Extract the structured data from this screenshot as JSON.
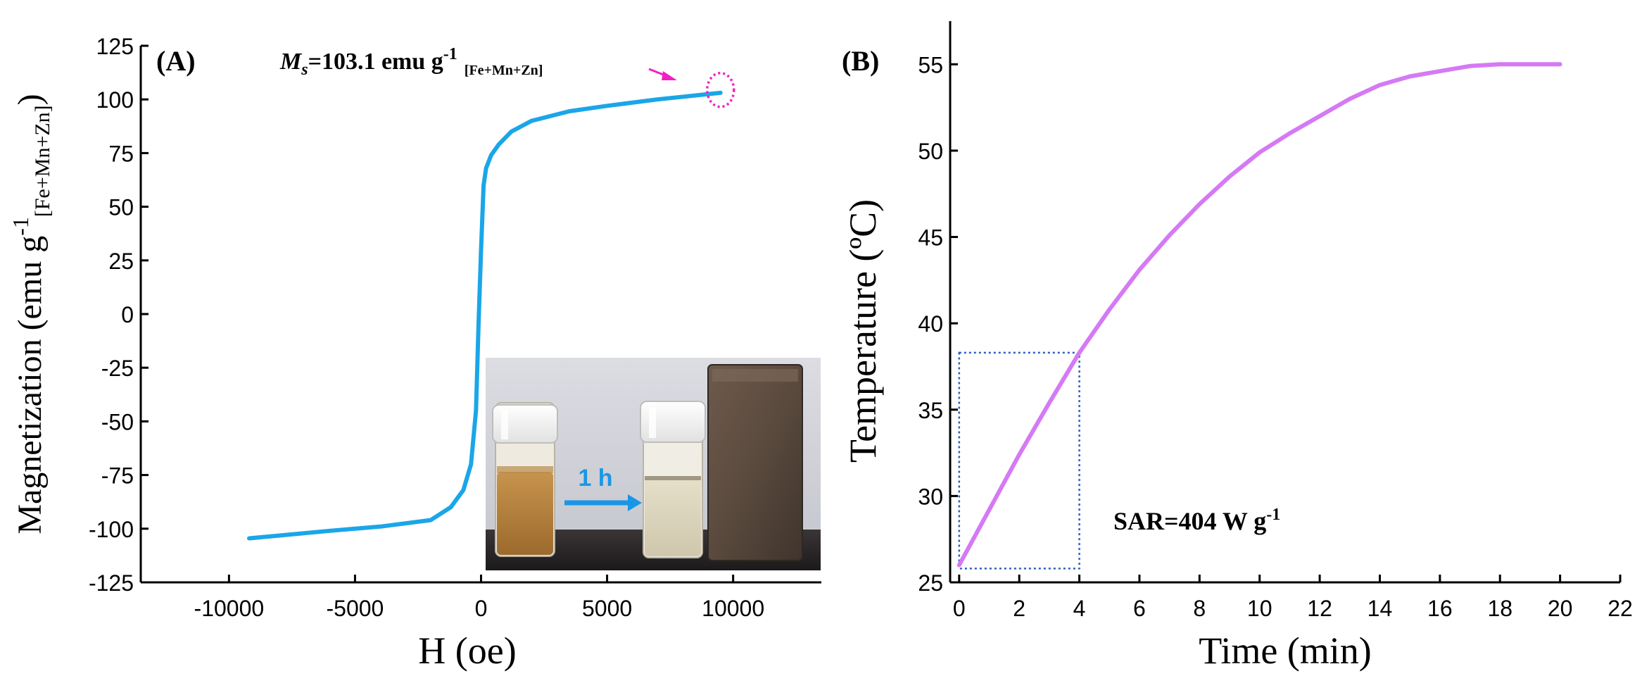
{
  "chart_data": [
    {
      "type": "line",
      "panel_label": "(A)",
      "xlabel": "H (oe)",
      "ylabel_main": "Magnetization (emu g",
      "ylabel_sup": "-1",
      "ylabel_sub": "[Fe+Mn+Zn]",
      "ylabel_close": ")",
      "xlim": [
        -13500,
        13500
      ],
      "ylim": [
        -125,
        125
      ],
      "xticks": [
        -10000,
        -5000,
        0,
        5000,
        10000
      ],
      "xtick_labels": [
        "-10000",
        "-5000",
        "0",
        "5000",
        "10000"
      ],
      "yticks": [
        125,
        100,
        75,
        50,
        25,
        0,
        -25,
        -50,
        -75,
        -100,
        -125
      ],
      "ytick_labels": [
        "125",
        "100",
        "75",
        "50",
        "25",
        "0",
        "-25",
        "-50",
        "-75",
        "-100",
        "-125"
      ],
      "series": [
        {
          "name": "magnetization",
          "color": "#1aa6e8",
          "x": [
            -9200,
            -6000,
            -4000,
            -2000,
            -1200,
            -700,
            -400,
            -200,
            -100,
            0,
            100,
            200,
            400,
            700,
            1200,
            2000,
            3500,
            5000,
            7000,
            9500
          ],
          "y": [
            -104.5,
            -101,
            -99,
            -96,
            -90,
            -82,
            -70,
            -45,
            -5,
            30,
            60,
            68,
            74,
            79,
            85,
            90,
            94.5,
            97,
            100,
            103.1
          ]
        }
      ],
      "annotation": {
        "ms_symbol": "M",
        "ms_subscript": "s",
        "ms_value": "=103.1 emu g",
        "ms_superscript": "-1",
        "ms_unit_subscript": "[Fe+Mn+Zn]",
        "arrow_color": "#f21fc4",
        "target_x": 9500,
        "target_y": 103.1
      },
      "inset": {
        "arrow_label": "1 h",
        "arrow_color": "#1a96e6"
      }
    },
    {
      "type": "line",
      "panel_label": "(B)",
      "xlabel": "Time (min)",
      "ylabel": "Temperature (ºC)",
      "xlim": [
        -0.3,
        22
      ],
      "ylim": [
        25,
        57.5
      ],
      "xticks": [
        0,
        2,
        4,
        6,
        8,
        10,
        12,
        14,
        16,
        18,
        20,
        22
      ],
      "xtick_labels": [
        "0",
        "2",
        "4",
        "6",
        "8",
        "10",
        "12",
        "14",
        "16",
        "18",
        "20",
        "22"
      ],
      "yticks": [
        25,
        30,
        35,
        40,
        45,
        50,
        55
      ],
      "ytick_labels": [
        "25",
        "30",
        "35",
        "40",
        "45",
        "50",
        "55"
      ],
      "series": [
        {
          "name": "temperature",
          "color": "#d579f5",
          "x": [
            0,
            1,
            2,
            3,
            4,
            5,
            6,
            7,
            8,
            9,
            10,
            11,
            12,
            13,
            14,
            15,
            16,
            17,
            18,
            19,
            20
          ],
          "y": [
            26,
            29.2,
            32.4,
            35.4,
            38.3,
            40.8,
            43.1,
            45.1,
            46.9,
            48.5,
            49.9,
            51,
            52,
            53,
            53.8,
            54.3,
            54.6,
            54.9,
            55,
            55,
            55
          ]
        }
      ],
      "box": {
        "x0": 0,
        "x1": 4,
        "y0": 25.8,
        "y1": 38.3
      },
      "annotation": {
        "sar_text": "SAR=404 W g",
        "sar_superscript": "-1"
      }
    }
  ]
}
